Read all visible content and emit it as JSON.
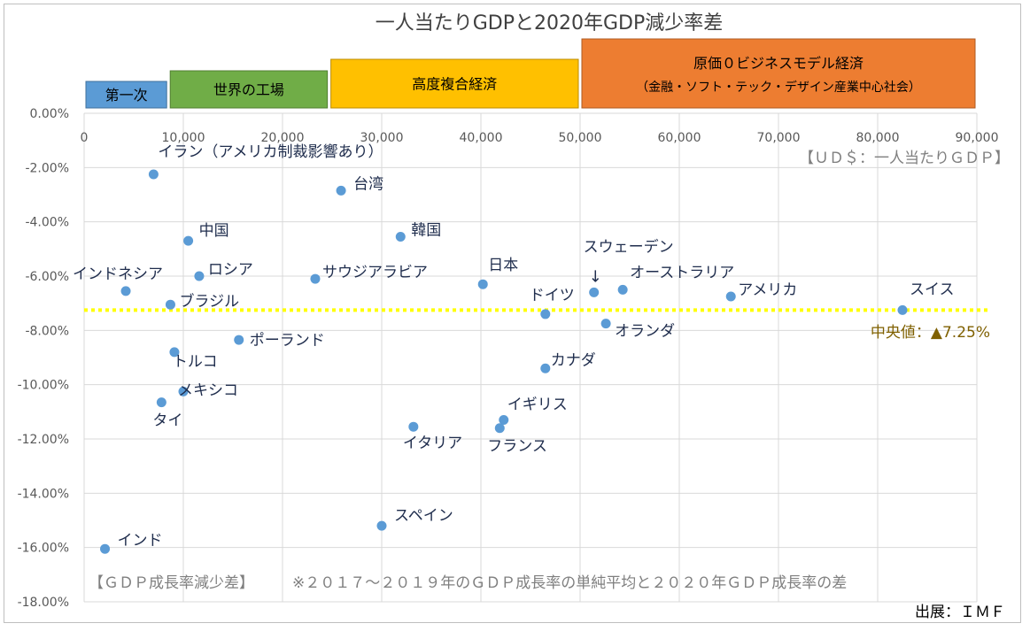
{
  "chart_data": {
    "type": "scatter",
    "title": "一人当たりGDPと2020年GDP減少率差",
    "x_note": "【ＵＤ＄：一人当たりＧＤＰ】",
    "y_note": "【ＧＤＰ成長率減少差】",
    "footnote": "※２０１７～２０１９年のＧＤＰ成長率の単純平均と２０２０年ＧＤＰ成長率の差",
    "source": "出展：ＩＭＦ",
    "xlim": [
      0,
      90000
    ],
    "ylim": [
      -18,
      0
    ],
    "x_ticks": [
      "0",
      "10,000",
      "20,000",
      "30,000",
      "40,000",
      "50,000",
      "60,000",
      "70,000",
      "80,000",
      "90,000"
    ],
    "y_ticks": [
      "0.00%",
      "-2.00%",
      "-4.00%",
      "-6.00%",
      "-8.00%",
      "-10.00%",
      "-12.00%",
      "-14.00%",
      "-16.00%",
      "-18.00%"
    ],
    "grid": true,
    "median": {
      "value": -7.25,
      "label": "中央値：▲7.25%",
      "color": "#ffff00"
    },
    "marker_color": "#5b9bd5",
    "stages": [
      {
        "label": "第一次",
        "sublabel": "",
        "x_start": 0,
        "x_end": 8500,
        "color": "#5b9bd5",
        "border": "#41719c",
        "text_color": "#000000"
      },
      {
        "label": "世界の工場",
        "sublabel": "",
        "x_start": 8500,
        "x_end": 24700,
        "color": "#70ad47",
        "border": "#507e32",
        "text_color": "#000000"
      },
      {
        "label": "高度複合経済",
        "sublabel": "",
        "x_start": 24700,
        "x_end": 50000,
        "color": "#ffc000",
        "border": "#bc8c00",
        "text_color": "#000000"
      },
      {
        "label": "原価０ビジネスモデル経済",
        "sublabel": "（金融・ソフト・テック・デザイン産業中心社会）",
        "x_start": 50000,
        "x_end": 90000,
        "color": "#ed7d31",
        "border": "#ae5a21",
        "text_color": "#000000"
      }
    ],
    "points": [
      {
        "name": "イラン（アメリカ制裁影響あり）",
        "x": 7000,
        "y": -2.25
      },
      {
        "name": "台湾",
        "x": 25900,
        "y": -2.85
      },
      {
        "name": "中国",
        "x": 10500,
        "y": -4.7
      },
      {
        "name": "韓国",
        "x": 31900,
        "y": -4.55
      },
      {
        "name": "ロシア",
        "x": 11600,
        "y": -6.0
      },
      {
        "name": "サウジアラビア",
        "x": 23300,
        "y": -6.1
      },
      {
        "name": "インドネシア",
        "x": 4200,
        "y": -6.55
      },
      {
        "name": "日本",
        "x": 40200,
        "y": -6.3
      },
      {
        "name": "スウェーデン",
        "x": 51400,
        "y": -6.6
      },
      {
        "name": "オーストラリア",
        "x": 54300,
        "y": -6.5
      },
      {
        "name": "アメリカ",
        "x": 65200,
        "y": -6.75
      },
      {
        "name": "スイス",
        "x": 82500,
        "y": -7.25
      },
      {
        "name": "ブラジル",
        "x": 8700,
        "y": -7.05
      },
      {
        "name": "ドイツ",
        "x": 46500,
        "y": -7.4
      },
      {
        "name": "オランダ",
        "x": 52600,
        "y": -7.75
      },
      {
        "name": "ポーランド",
        "x": 15600,
        "y": -8.35
      },
      {
        "name": "トルコ",
        "x": 9100,
        "y": -8.8
      },
      {
        "name": "カナダ",
        "x": 46500,
        "y": -9.4
      },
      {
        "name": "メキシコ",
        "x": 10000,
        "y": -10.25
      },
      {
        "name": "タイ",
        "x": 7800,
        "y": -10.65
      },
      {
        "name": "イギリス",
        "x": 42300,
        "y": -11.3
      },
      {
        "name": "イタリア",
        "x": 33200,
        "y": -11.55
      },
      {
        "name": "フランス",
        "x": 41900,
        "y": -11.6
      },
      {
        "name": "スペイン",
        "x": 30000,
        "y": -15.2
      },
      {
        "name": "インド",
        "x": 2100,
        "y": -16.05
      }
    ],
    "arrow_label": "↓"
  }
}
